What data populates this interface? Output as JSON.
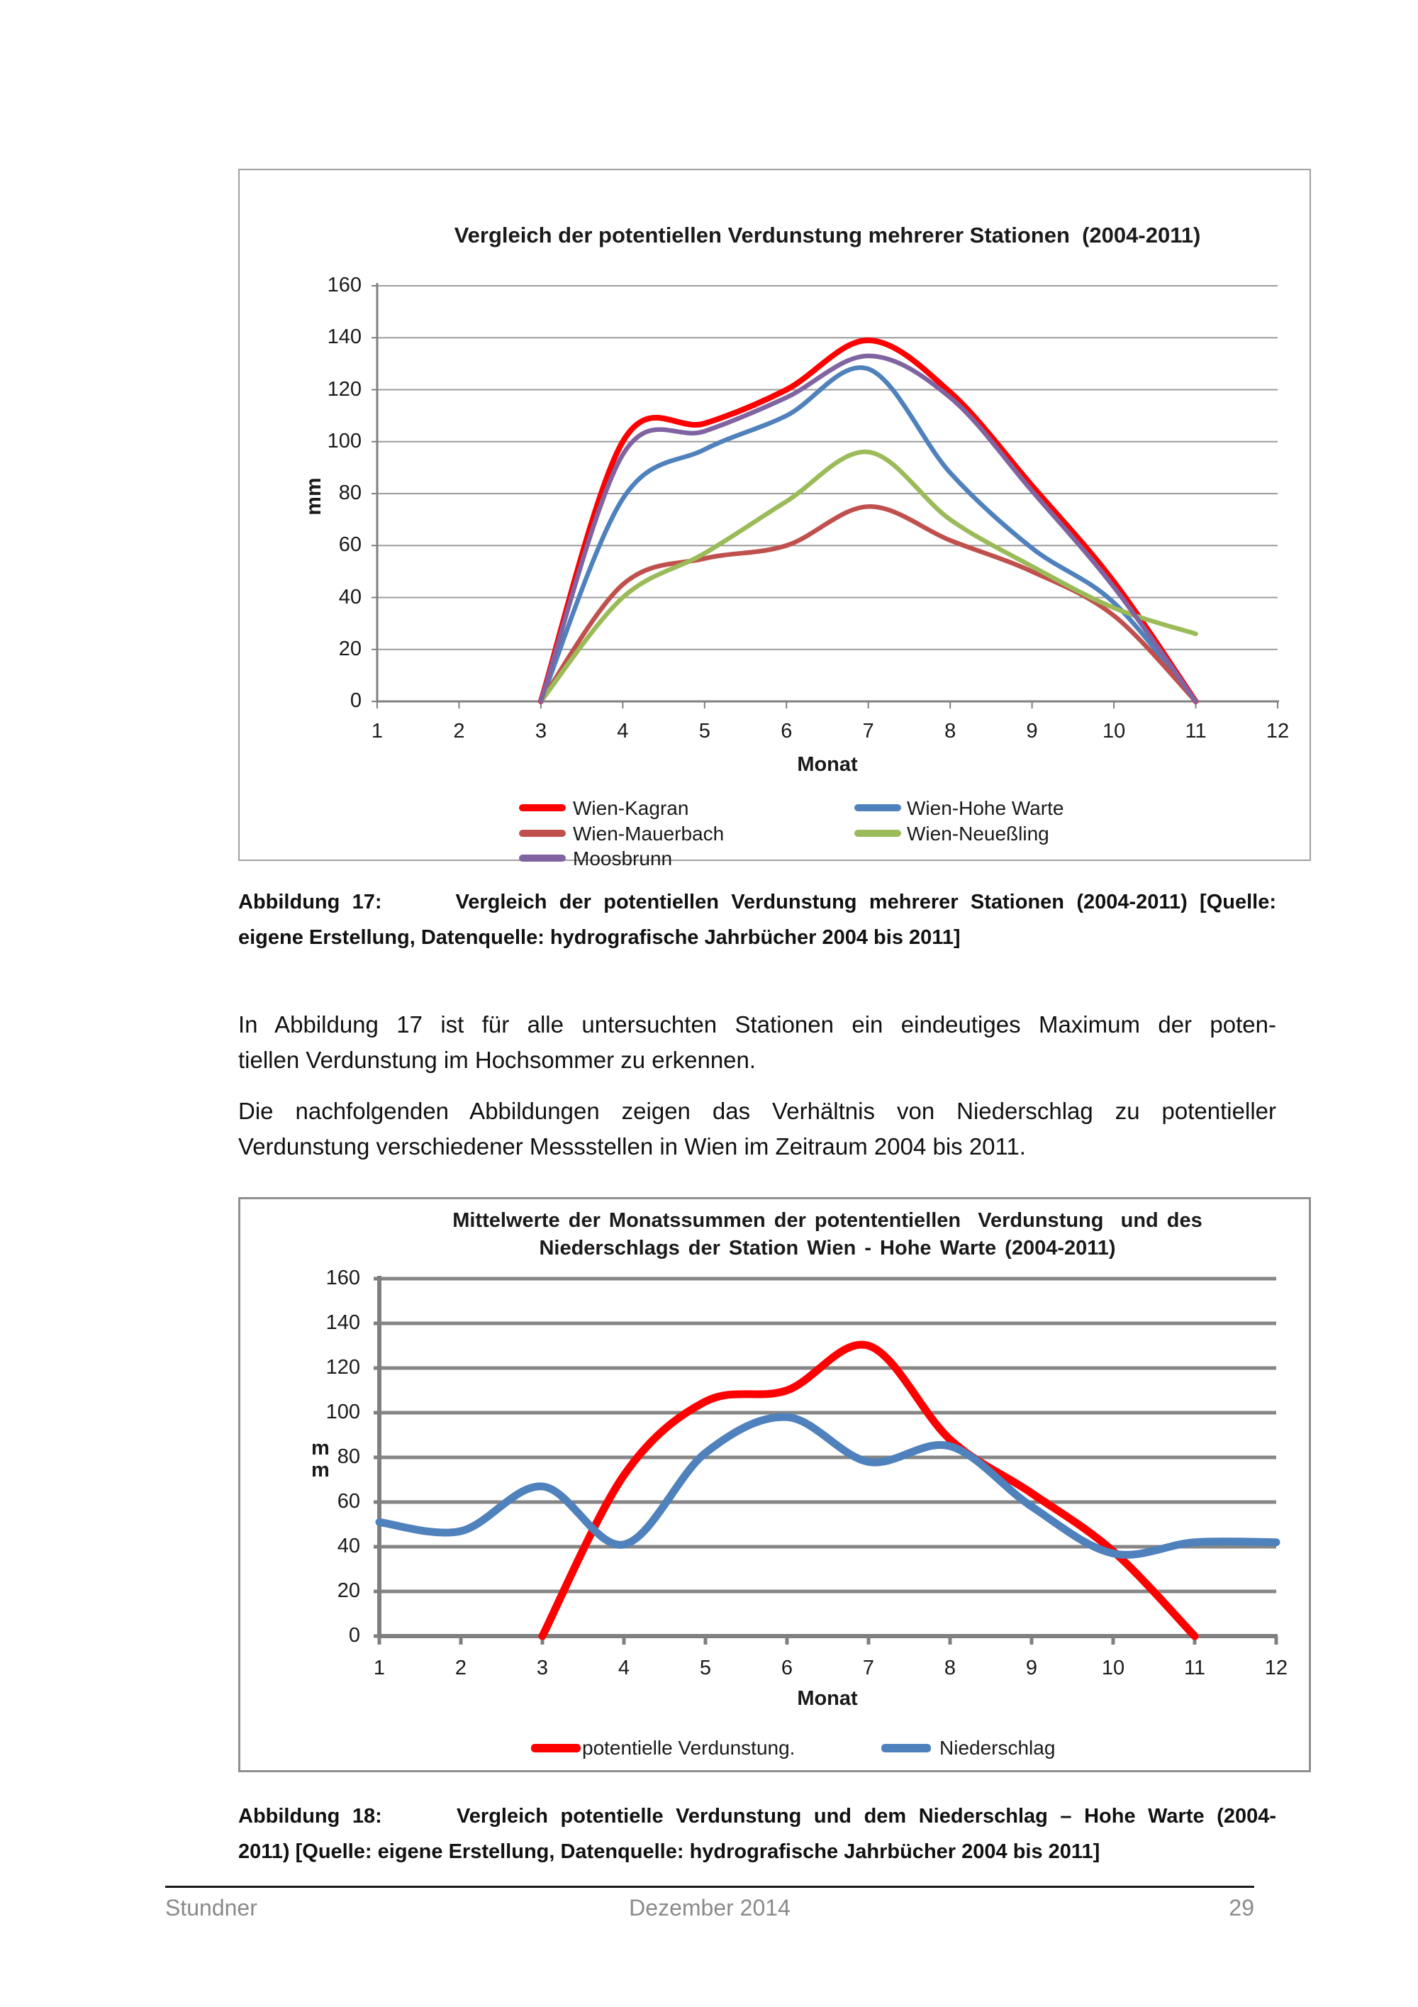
{
  "page": {
    "caption17": {
      "line1": "Abbildung 17:      Vergleich der potentiellen Verdunstung mehrerer Stationen (2004-2011) [Quelle:",
      "line2": "eigene Erstellung, Datenquelle: hydrografische Jahrbücher 2004 bis 2011]"
    },
    "paragraph1": {
      "line1": "In Abbildung 17 ist für alle untersuchten Stationen ein eindeutiges Maximum der poten-",
      "line2": "tiellen Verdunstung im Hochsommer zu erkennen."
    },
    "paragraph2": {
      "line1": "Die nachfolgenden Abbildungen zeigen das Verhältnis von Niederschlag zu potentieller",
      "line2": "Verdunstung verschiedener Messstellen in Wien im Zeitraum 2004 bis 2011."
    },
    "caption18": {
      "line1": "Abbildung 18:      Vergleich potentielle Verdunstung und dem Niederschlag – Hohe Warte (2004-",
      "line2": "2011) [Quelle: eigene Erstellung, Datenquelle: hydrografische Jahrbücher 2004 bis 2011]"
    },
    "footer": {
      "author": "Stundner",
      "date": "Dezember 2014",
      "page_number": "29"
    }
  },
  "chart_data": [
    {
      "type": "line",
      "title": "Vergleich der potentiellen Verdunstung mehrerer Stationen  (2004-2011)",
      "xlabel": "Monat",
      "ylabel": "mm",
      "x": [
        1,
        2,
        3,
        4,
        5,
        6,
        7,
        8,
        9,
        10,
        11,
        12
      ],
      "ylim": [
        0,
        160
      ],
      "ytick_step": 20,
      "grid": true,
      "legend_position": "bottom",
      "series": [
        {
          "name": "Wien-Kagran",
          "color": "#FF0000",
          "values": [
            null,
            null,
            0,
            100,
            107,
            120,
            139,
            119,
            83,
            46,
            0,
            null
          ]
        },
        {
          "name": "Wien-Hohe Warte",
          "color": "#4F81BD",
          "values": [
            null,
            null,
            0,
            78,
            97,
            110,
            128,
            88,
            59,
            38,
            0,
            null
          ]
        },
        {
          "name": "Wien-Mauerbach",
          "color": "#C0504D",
          "values": [
            null,
            null,
            0,
            45,
            55,
            60,
            75,
            62,
            50,
            33,
            0,
            null
          ]
        },
        {
          "name": "Wien-Neueßling",
          "color": "#9BBB59",
          "values": [
            null,
            null,
            0,
            40,
            57,
            77,
            96,
            70,
            52,
            36,
            26,
            null
          ]
        },
        {
          "name": "Moosbrunn",
          "color": "#8064A2",
          "values": [
            null,
            null,
            0,
            95,
            104,
            117,
            133,
            117,
            81,
            44,
            0,
            null
          ]
        }
      ]
    },
    {
      "type": "line",
      "title_lines": [
        "Mittelwerte der Monatssummen der potententiellen  Verdunstung  und des",
        "Niederschlags der Station Wien - Hohe Warte (2004-2011)"
      ],
      "xlabel": "Monat",
      "ylabel": "mm",
      "x": [
        1,
        2,
        3,
        4,
        5,
        6,
        7,
        8,
        9,
        10,
        11,
        12
      ],
      "ylim": [
        0,
        160
      ],
      "ytick_step": 20,
      "grid": true,
      "legend_position": "bottom",
      "series": [
        {
          "name": "potentielle Verdunstung.",
          "color": "#FF0000",
          "values": [
            null,
            null,
            0,
            72,
            105,
            110,
            130,
            88,
            64,
            38,
            0,
            null
          ]
        },
        {
          "name": "Niederschlag",
          "color": "#4F81BD",
          "values": [
            51,
            47,
            67,
            41,
            82,
            98,
            78,
            85,
            58,
            37,
            42,
            42
          ]
        }
      ]
    }
  ]
}
